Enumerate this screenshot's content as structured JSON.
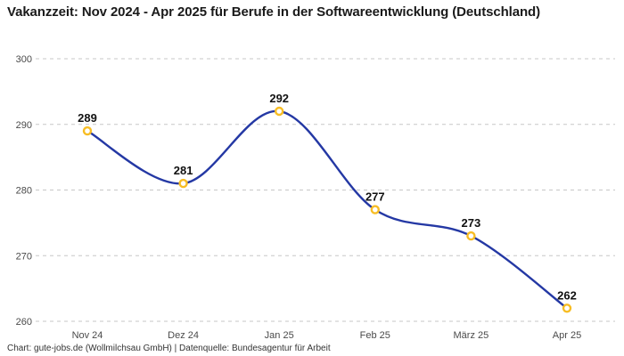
{
  "title": "Vakanzzeit: Nov 2024 - Apr 2025 für Berufe in der Softwareentwicklung (Deutschland)",
  "footer": {
    "credit": "Chart: gute-jobs.de (Wollmilchsau GmbH) | Datenquelle: Bundesagentur für Arbeit"
  },
  "chart_data": {
    "type": "line",
    "title": "Vakanzzeit: Nov 2024 - Apr 2025 für Berufe in der Softwareentwicklung (Deutschland)",
    "categories": [
      "Nov 24",
      "Dez 24",
      "Jan 25",
      "Feb 25",
      "März 25",
      "Apr 25"
    ],
    "values": [
      289,
      281,
      292,
      277,
      273,
      262
    ],
    "point_labels": [
      "289",
      "281",
      "292",
      "277",
      "273",
      "262"
    ],
    "xlabel": "",
    "ylabel": "",
    "ylim": [
      260,
      300
    ],
    "yticks": [
      260,
      270,
      280,
      290,
      300
    ],
    "grid": "horizontal-dashed",
    "legend": "none",
    "smooth": true,
    "colors": {
      "line": "#2438A4",
      "marker_ring": "#F7BD24",
      "marker_fill": "#FFFFFF",
      "gridline": "#c7c7c7",
      "tick_text": "#4a4a4a",
      "point_label_text": "#111111"
    }
  }
}
